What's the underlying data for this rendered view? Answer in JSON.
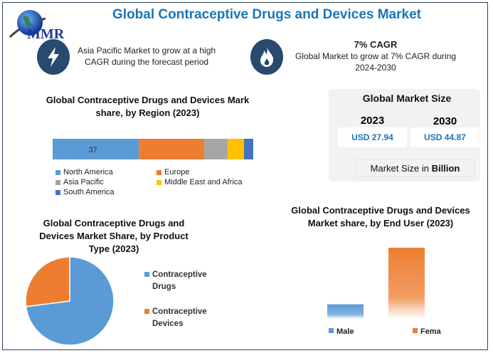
{
  "header": {
    "title": "Global Contraceptive Drugs and Devices Market",
    "logo_text": "MMR"
  },
  "highlights": [
    {
      "icon": "lightning-icon",
      "lines": [
        "Asia Pacific Market to grow at a high",
        "CAGR during the forecast period"
      ]
    },
    {
      "icon": "flame-icon",
      "heading": "7% CAGR",
      "lines": [
        "Global Market to grow at 7% CAGR during",
        "2024-2030"
      ]
    }
  ],
  "market_size": {
    "title": "Global Market Size",
    "years": [
      "2023",
      "2030"
    ],
    "values": [
      "USD 27.94",
      "USD 44.87"
    ],
    "note_prefix": "Market Size in ",
    "note_bold": "Billion"
  },
  "chart_data": [
    {
      "type": "bar",
      "orientation": "horizontal-stacked",
      "title_lines": [
        "Global Contraceptive Drugs and Devices Mark",
        "share, by Region (2023)"
      ],
      "categories": [
        "North America",
        "Europe",
        "Asia Pacific",
        "Middle East and Africa",
        "South America"
      ],
      "values": [
        37,
        28,
        10,
        7,
        4
      ],
      "data_labels": [
        "37"
      ],
      "colors": [
        "#5b9bd5",
        "#ed7d31",
        "#a5a5a5",
        "#ffc000",
        "#4472c4"
      ],
      "legend": "bottom"
    },
    {
      "type": "pie",
      "title_lines": [
        "Global Contraceptive Drugs and",
        "Devices Market Share, by Product",
        "Type (2023)"
      ],
      "categories": [
        "Contraceptive Drugs",
        "Contraceptive Devices"
      ],
      "legend_lines": [
        [
          "Contraceptive",
          "Drugs"
        ],
        [
          "Contraceptive",
          "Devices"
        ]
      ],
      "values": [
        73,
        27
      ],
      "colors": [
        "#5b9bd5",
        "#ed7d31"
      ],
      "legend": "right"
    },
    {
      "type": "bar",
      "title_lines": [
        "Global Contraceptive Drugs and Devices",
        "Market share, by End User (2023)"
      ],
      "categories": [
        "Male",
        "Female"
      ],
      "values": [
        17,
        83
      ],
      "colors": [
        "#5b9bd5",
        "#ed7d31"
      ],
      "legend": "bottom"
    }
  ]
}
